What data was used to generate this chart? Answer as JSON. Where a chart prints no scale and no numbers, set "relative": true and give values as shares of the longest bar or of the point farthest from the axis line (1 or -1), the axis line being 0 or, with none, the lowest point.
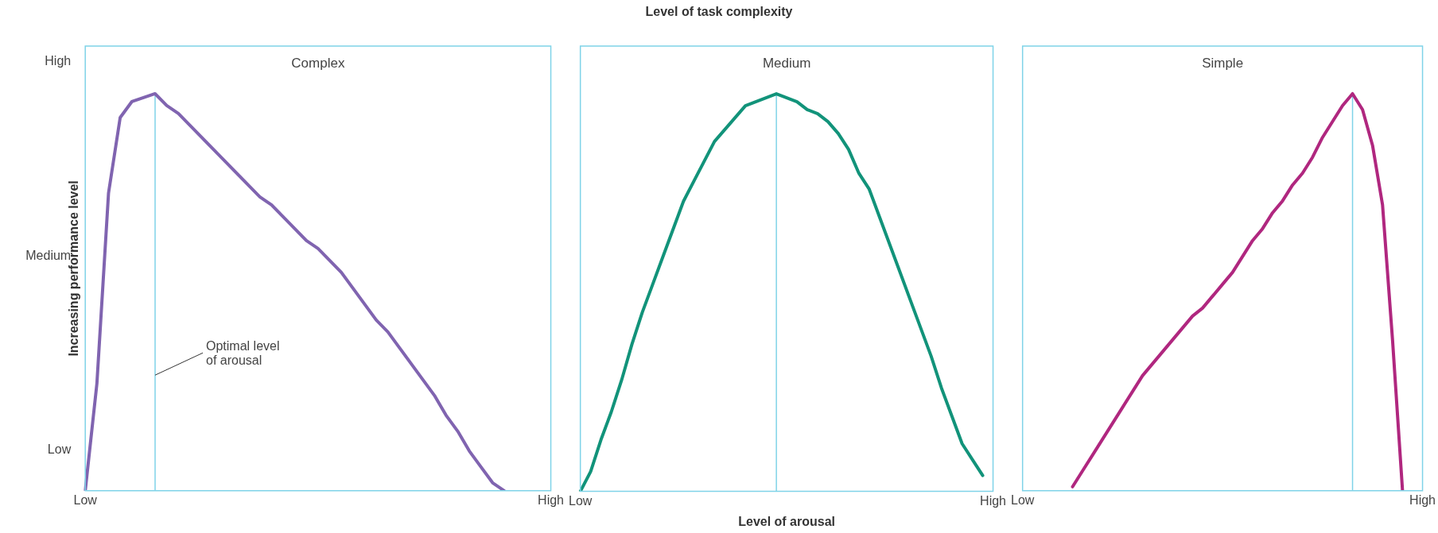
{
  "chart_data": [
    {
      "type": "line",
      "title": "Complex",
      "ylabel": "Increasing performance level",
      "relative": true,
      "grid": false,
      "legend": false,
      "categories": [
        "Low",
        null,
        null,
        null,
        null,
        null,
        null,
        null,
        null,
        null,
        null,
        null,
        null,
        null,
        null,
        null,
        null,
        null,
        null,
        null,
        null,
        null,
        null,
        null,
        null,
        null,
        null,
        null,
        null,
        null,
        null,
        null,
        null,
        null,
        null,
        null,
        null,
        null,
        null,
        null,
        "High"
      ],
      "series": [
        {
          "color": "#8064b0",
          "values": [
            0,
            0.27,
            0.75,
            0.94,
            0.98,
            0.99,
            1,
            0.97,
            0.95,
            0.92,
            0.89,
            0.86,
            0.83,
            0.8,
            0.77,
            0.74,
            0.72,
            0.69,
            0.66,
            0.63,
            0.61,
            0.58,
            0.55,
            0.51,
            0.47,
            0.43,
            0.4,
            0.36,
            0.32,
            0.28,
            0.24,
            0.19,
            0.15,
            0.1,
            0.06,
            0.02,
            0,
            null,
            null,
            null,
            null
          ]
        }
      ],
      "annotations": [
        "High",
        "Medium",
        "Low",
        {
          "text": "Optimal level of arousal"
        }
      ]
    },
    {
      "type": "line",
      "title": "Medium",
      "subtitle": "Level of task complexity",
      "xlabel": "Level of arousal",
      "relative": true,
      "grid": false,
      "legend": false,
      "categories": [
        "Low",
        null,
        null,
        null,
        null,
        null,
        null,
        null,
        null,
        null,
        null,
        null,
        null,
        null,
        null,
        null,
        null,
        null,
        null,
        null,
        null,
        null,
        null,
        null,
        null,
        null,
        null,
        null,
        null,
        null,
        null,
        null,
        null,
        null,
        null,
        null,
        null,
        null,
        null,
        null,
        "High"
      ],
      "series": [
        {
          "color": "#12937a",
          "values": [
            0,
            0.05,
            0.13,
            0.2,
            0.28,
            0.37,
            0.45,
            0.52,
            0.59,
            0.66,
            0.73,
            0.78,
            0.83,
            0.88,
            0.91,
            0.94,
            0.97,
            0.98,
            0.99,
            1,
            0.99,
            0.98,
            0.96,
            0.95,
            0.93,
            0.9,
            0.86,
            0.8,
            0.76,
            0.69,
            0.62,
            0.55,
            0.48,
            0.41,
            0.34,
            0.26,
            0.19,
            0.12,
            0.08,
            0.04,
            null
          ]
        }
      ]
    },
    {
      "type": "line",
      "title": "Simple",
      "relative": true,
      "grid": false,
      "legend": false,
      "categories": [
        "Low",
        null,
        null,
        null,
        null,
        null,
        null,
        null,
        null,
        null,
        null,
        null,
        null,
        null,
        null,
        null,
        null,
        null,
        null,
        null,
        null,
        null,
        null,
        null,
        null,
        null,
        null,
        null,
        null,
        null,
        null,
        null,
        null,
        null,
        null,
        null,
        null,
        null,
        null,
        null,
        "High"
      ],
      "series": [
        {
          "color": "#b0277f",
          "values": [
            null,
            null,
            null,
            null,
            null,
            0.01,
            0.05,
            0.09,
            0.13,
            0.17,
            0.21,
            0.25,
            0.29,
            0.32,
            0.35,
            0.38,
            0.41,
            0.44,
            0.46,
            0.49,
            0.52,
            0.55,
            0.59,
            0.63,
            0.66,
            0.7,
            0.73,
            0.77,
            0.8,
            0.84,
            0.89,
            0.93,
            0.97,
            1,
            0.96,
            0.87,
            0.72,
            0.38,
            0,
            null,
            null
          ]
        }
      ]
    }
  ]
}
